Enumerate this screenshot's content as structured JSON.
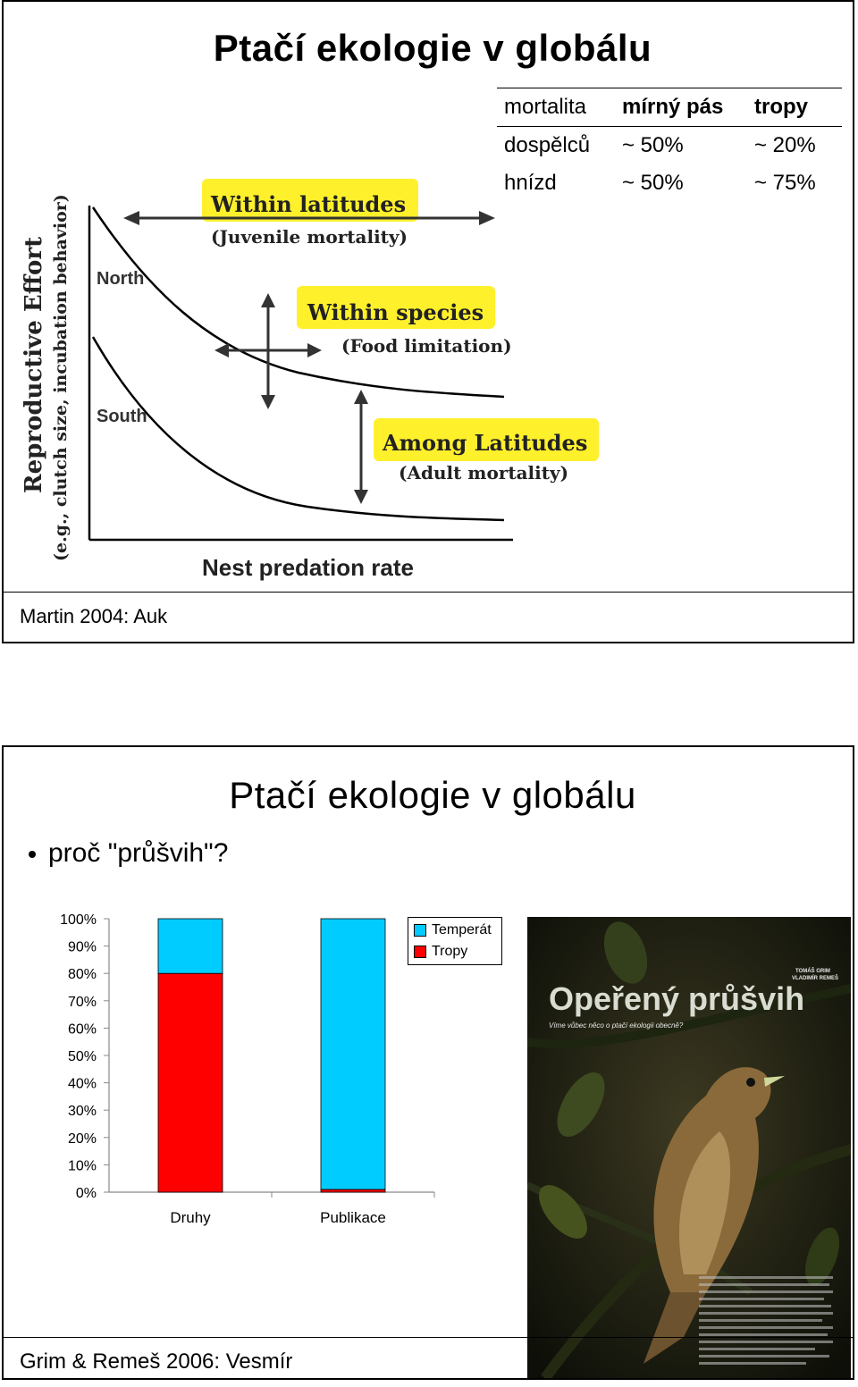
{
  "slide1": {
    "title": "Ptačí ekologie v globálu",
    "table": {
      "headers": [
        "mortalita",
        "mírný pás",
        "tropy"
      ],
      "rows": [
        [
          "dospělců",
          "~ 50%",
          "~ 20%"
        ],
        [
          "hnízd",
          "~ 50%",
          "~ 75%"
        ]
      ]
    },
    "figure": {
      "ylabel_main": "Reproductive Effort",
      "ylabel_sub": "(e.g., clutch size, incubation behavior)",
      "xlabel": "Nest predation rate",
      "curve_north": "North",
      "curve_south": "South",
      "annot1_title": "Within latitudes",
      "annot1_sub": "(Juvenile mortality)",
      "annot2_title": "Within species",
      "annot2_sub": "(Food limitation)",
      "annot3_title": "Among Latitudes",
      "annot3_sub": "(Adult mortality)",
      "highlight_color": "#fff02c"
    },
    "caption": "Martin 2004: Auk"
  },
  "slide2": {
    "title": "Ptačí ekologie v globálu",
    "bullet": "proč \"průšvih\"?",
    "caption": "Grim & Remeš 2006: Vesmír",
    "cover": {
      "headline": "Opeřený průšvih",
      "authors": "TOMÁŠ GRIM\nVLADIMÍR REMEŠ",
      "subtitle": "Víme vůbec něco o ptačí ekologii obecně?"
    }
  },
  "chart_data": {
    "type": "bar",
    "stacked": true,
    "categories": [
      "Druhy",
      "Publikace"
    ],
    "series": [
      {
        "name": "Tropy",
        "values": [
          80,
          1
        ],
        "color": "#ff0000"
      },
      {
        "name": "Temperát",
        "values": [
          20,
          99
        ],
        "color": "#00ccff"
      }
    ],
    "yticks": [
      "0%",
      "10%",
      "20%",
      "30%",
      "40%",
      "50%",
      "60%",
      "70%",
      "80%",
      "90%",
      "100%"
    ],
    "ylim": [
      0,
      100
    ],
    "legend_position": "top-right"
  }
}
